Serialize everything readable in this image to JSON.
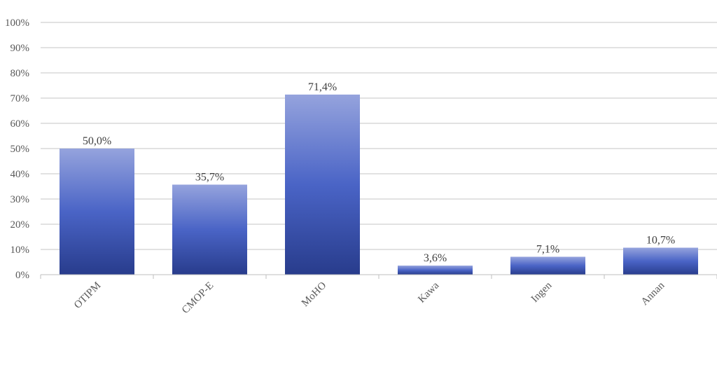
{
  "chart_data": {
    "type": "bar",
    "categories": [
      "OTIPM",
      "CMOP-E",
      "MoHO",
      "Kawa",
      "Ingen",
      "Annan"
    ],
    "values": [
      50.0,
      35.7,
      71.4,
      3.6,
      7.1,
      10.7
    ],
    "data_labels": [
      "50,0%",
      "35,7%",
      "71,4%",
      "3,6%",
      "7,1%",
      "10,7%"
    ],
    "y_ticks": [
      0,
      10,
      20,
      30,
      40,
      50,
      60,
      70,
      80,
      90,
      100
    ],
    "y_tick_labels": [
      "0%",
      "10%",
      "20%",
      "30%",
      "40%",
      "50%",
      "60%",
      "70%",
      "80%",
      "90%",
      "100%"
    ],
    "ylim": [
      0,
      100
    ],
    "grid": true,
    "legend": "none",
    "title": "",
    "xlabel": "",
    "ylabel": "",
    "colors": {
      "bar_top": "#95a3dd",
      "bar_mid": "#4a64c6",
      "bar_bottom": "#283c8c",
      "grid": "#c6c6c6",
      "axis": "#bfbfbf"
    }
  }
}
